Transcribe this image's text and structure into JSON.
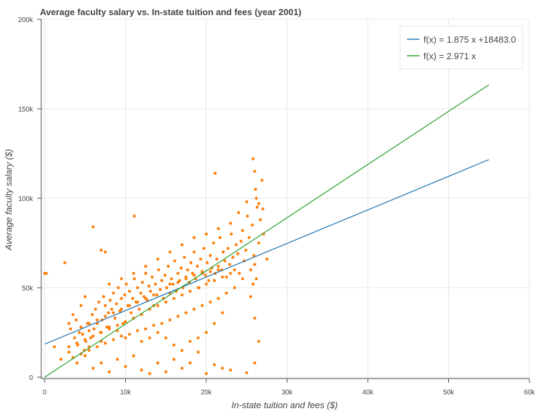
{
  "chart_data": {
    "type": "scatter",
    "title": "Average faculty salary vs. In-state tuition and fees (year 2001)",
    "xlabel": "In-state tuition and fees ($)",
    "ylabel": "Average faculty salary ($)",
    "xlim": [
      0,
      60000
    ],
    "ylim": [
      0,
      200000
    ],
    "x_ticks": [
      {
        "value": 0,
        "label": "0"
      },
      {
        "value": 10000,
        "label": "10k"
      },
      {
        "value": 20000,
        "label": "20k"
      },
      {
        "value": 30000,
        "label": "30k"
      },
      {
        "value": 40000,
        "label": "40k"
      },
      {
        "value": 50000,
        "label": "50k"
      },
      {
        "value": 60000,
        "label": "60k"
      }
    ],
    "y_ticks": [
      {
        "value": 0,
        "label": "0"
      },
      {
        "value": 50000,
        "label": "50k"
      },
      {
        "value": 100000,
        "label": "100k"
      },
      {
        "value": 150000,
        "label": "150k"
      },
      {
        "value": 200000,
        "label": "200k"
      }
    ],
    "grid": true,
    "legend_position": "top-right",
    "series": [
      {
        "kind": "scatter",
        "color": "#ff7f0e",
        "points": [
          [
            0,
            58000
          ],
          [
            200,
            58000
          ],
          [
            2500,
            64000
          ],
          [
            3000,
            30000
          ],
          [
            3200,
            27000
          ],
          [
            3500,
            35000
          ],
          [
            3700,
            22000
          ],
          [
            3900,
            32000
          ],
          [
            4100,
            18000
          ],
          [
            4300,
            25000
          ],
          [
            4500,
            28000
          ],
          [
            4700,
            24000
          ],
          [
            4900,
            15000
          ],
          [
            5100,
            20000
          ],
          [
            5300,
            30000
          ],
          [
            5500,
            26000
          ],
          [
            5700,
            22000
          ],
          [
            5900,
            35000
          ],
          [
            6100,
            27000
          ],
          [
            6300,
            38000
          ],
          [
            6500,
            30000
          ],
          [
            6700,
            42000
          ],
          [
            6900,
            25000
          ],
          [
            7100,
            32000
          ],
          [
            7300,
            45000
          ],
          [
            7500,
            40000
          ],
          [
            7700,
            28000
          ],
          [
            7900,
            36000
          ],
          [
            8100,
            43000
          ],
          [
            8300,
            38000
          ],
          [
            8500,
            47000
          ],
          [
            8700,
            33000
          ],
          [
            8900,
            41000
          ],
          [
            9100,
            50000
          ],
          [
            9300,
            37000
          ],
          [
            9500,
            44000
          ],
          [
            9700,
            30000
          ],
          [
            9900,
            46000
          ],
          [
            10100,
            52000
          ],
          [
            10300,
            40000
          ],
          [
            10500,
            48000
          ],
          [
            10700,
            36000
          ],
          [
            10900,
            44000
          ],
          [
            11100,
            55000
          ],
          [
            11300,
            42000
          ],
          [
            11500,
            50000
          ],
          [
            11700,
            38000
          ],
          [
            11900,
            47000
          ],
          [
            12100,
            53000
          ],
          [
            12300,
            45000
          ],
          [
            12500,
            58000
          ],
          [
            12700,
            43000
          ],
          [
            12900,
            51000
          ],
          [
            13100,
            48000
          ],
          [
            13300,
            56000
          ],
          [
            13500,
            40000
          ],
          [
            13700,
            52000
          ],
          [
            13900,
            46000
          ],
          [
            14100,
            60000
          ],
          [
            14300,
            49000
          ],
          [
            14500,
            54000
          ],
          [
            14700,
            44000
          ],
          [
            14900,
            57000
          ],
          [
            15100,
            50000
          ],
          [
            15300,
            62000
          ],
          [
            15500,
            47000
          ],
          [
            15700,
            55000
          ],
          [
            15900,
            52000
          ],
          [
            16100,
            65000
          ],
          [
            16300,
            48000
          ],
          [
            16500,
            58000
          ],
          [
            16700,
            54000
          ],
          [
            16900,
            61000
          ],
          [
            17100,
            50000
          ],
          [
            17300,
            67000
          ],
          [
            17500,
            56000
          ],
          [
            17700,
            60000
          ],
          [
            17900,
            53000
          ],
          [
            18100,
            64000
          ],
          [
            18300,
            58000
          ],
          [
            18500,
            70000
          ],
          [
            18700,
            55000
          ],
          [
            18900,
            62000
          ],
          [
            19100,
            50000
          ],
          [
            19300,
            66000
          ],
          [
            19500,
            59000
          ],
          [
            19700,
            72000
          ],
          [
            19900,
            57000
          ],
          [
            20100,
            64000
          ],
          [
            20300,
            54000
          ],
          [
            20500,
            68000
          ],
          [
            20700,
            61000
          ],
          [
            20900,
            75000
          ],
          [
            21100,
            58000
          ],
          [
            21300,
            66000
          ],
          [
            21500,
            62000
          ],
          [
            21700,
            78000
          ],
          [
            21900,
            60000
          ],
          [
            22100,
            70000
          ],
          [
            22300,
            65000
          ],
          [
            22500,
            56000
          ],
          [
            22700,
            72000
          ],
          [
            22900,
            63000
          ],
          [
            23100,
            80000
          ],
          [
            23300,
            67000
          ],
          [
            23500,
            60000
          ],
          [
            23700,
            74000
          ],
          [
            23900,
            69000
          ],
          [
            24100,
            58000
          ],
          [
            24300,
            76000
          ],
          [
            24500,
            82000
          ],
          [
            24700,
            65000
          ],
          [
            24900,
            71000
          ],
          [
            25100,
            90000
          ],
          [
            25300,
            78000
          ],
          [
            25500,
            60000
          ],
          [
            25700,
            85000
          ],
          [
            25900,
            68000
          ],
          [
            26100,
            105000
          ],
          [
            26300,
            95000
          ],
          [
            26500,
            75000
          ],
          [
            26700,
            88000
          ],
          [
            26900,
            110000
          ],
          [
            27100,
            80000
          ],
          [
            25800,
            122000
          ],
          [
            26000,
            115000
          ],
          [
            26200,
            100000
          ],
          [
            21100,
            114000
          ],
          [
            11100,
            90000
          ],
          [
            6000,
            84000
          ],
          [
            7000,
            71000
          ],
          [
            7500,
            70000
          ],
          [
            1200,
            17000
          ],
          [
            2000,
            10000
          ],
          [
            3000,
            14000
          ],
          [
            4000,
            8000
          ],
          [
            5000,
            12000
          ],
          [
            6000,
            5000
          ],
          [
            7000,
            8000
          ],
          [
            8000,
            3000
          ],
          [
            9000,
            10000
          ],
          [
            10000,
            6000
          ],
          [
            11000,
            12000
          ],
          [
            12000,
            4000
          ],
          [
            13000,
            2000
          ],
          [
            14000,
            8000
          ],
          [
            15000,
            3000
          ],
          [
            16000,
            10000
          ],
          [
            17000,
            5000
          ],
          [
            18000,
            8000
          ],
          [
            19000,
            14000
          ],
          [
            20000,
            2000
          ],
          [
            21000,
            7000
          ],
          [
            22000,
            5000
          ],
          [
            23000,
            4000
          ],
          [
            25000,
            2500
          ],
          [
            26000,
            8000
          ],
          [
            26500,
            20000
          ],
          [
            26000,
            33000
          ],
          [
            25500,
            45000
          ],
          [
            25800,
            52000
          ],
          [
            26200,
            55000
          ],
          [
            12000,
            20000
          ],
          [
            13000,
            22000
          ],
          [
            14000,
            25000
          ],
          [
            15000,
            22000
          ],
          [
            16000,
            18000
          ],
          [
            17000,
            15000
          ],
          [
            18000,
            20000
          ],
          [
            19000,
            22000
          ],
          [
            20000,
            25000
          ],
          [
            21000,
            30000
          ],
          [
            22000,
            36000
          ],
          [
            10000,
            22000
          ],
          [
            9000,
            26000
          ],
          [
            8000,
            28000
          ],
          [
            7000,
            20000
          ],
          [
            5500,
            17000
          ],
          [
            4500,
            40000
          ],
          [
            5000,
            45000
          ],
          [
            8000,
            52000
          ],
          [
            9500,
            55000
          ],
          [
            11000,
            58000
          ],
          [
            12500,
            62000
          ],
          [
            14000,
            66000
          ],
          [
            15500,
            70000
          ],
          [
            17000,
            74000
          ],
          [
            18500,
            78000
          ],
          [
            20000,
            80000
          ],
          [
            21500,
            83000
          ],
          [
            23000,
            86000
          ],
          [
            24000,
            92000
          ],
          [
            25000,
            98000
          ],
          [
            26500,
            97000
          ],
          [
            27000,
            94000
          ],
          [
            27500,
            66000
          ],
          [
            26000,
            63000
          ],
          [
            24500,
            55000
          ],
          [
            23500,
            50000
          ],
          [
            22500,
            47000
          ],
          [
            21500,
            44000
          ],
          [
            20500,
            42000
          ],
          [
            19500,
            40000
          ],
          [
            18500,
            38000
          ],
          [
            17500,
            36000
          ],
          [
            16500,
            34000
          ],
          [
            15500,
            32000
          ],
          [
            14500,
            30000
          ],
          [
            13500,
            29000
          ],
          [
            12500,
            27000
          ],
          [
            11500,
            26000
          ],
          [
            10500,
            24000
          ],
          [
            9500,
            23000
          ],
          [
            8500,
            21000
          ],
          [
            7500,
            19000
          ],
          [
            6500,
            17000
          ],
          [
            5500,
            15000
          ],
          [
            4500,
            13000
          ],
          [
            3500,
            11000
          ],
          [
            13000,
            38000
          ],
          [
            14000,
            40000
          ],
          [
            15000,
            42000
          ],
          [
            16000,
            44000
          ],
          [
            17000,
            46000
          ],
          [
            18000,
            48000
          ],
          [
            19000,
            50000
          ],
          [
            20000,
            52000
          ],
          [
            21000,
            54000
          ],
          [
            22000,
            56000
          ],
          [
            23000,
            58000
          ],
          [
            12000,
            35000
          ],
          [
            11000,
            33000
          ],
          [
            10000,
            31000
          ],
          [
            9000,
            29000
          ],
          [
            8000,
            27000
          ],
          [
            7000,
            25000
          ],
          [
            6000,
            23000
          ],
          [
            5000,
            21000
          ],
          [
            4000,
            19000
          ],
          [
            3000,
            17000
          ],
          [
            15500,
            52000
          ],
          [
            16500,
            53000
          ],
          [
            17500,
            55000
          ],
          [
            18500,
            57000
          ],
          [
            19500,
            58000
          ],
          [
            20500,
            59000
          ],
          [
            21500,
            60000
          ],
          [
            13500,
            46000
          ],
          [
            12500,
            44000
          ],
          [
            11500,
            42000
          ],
          [
            10500,
            40000
          ],
          [
            9500,
            38000
          ],
          [
            8500,
            36000
          ],
          [
            7500,
            34000
          ],
          [
            6500,
            32000
          ],
          [
            5500,
            30000
          ],
          [
            4500,
            28000
          ]
        ]
      },
      {
        "kind": "line",
        "name": "f(x) = 1.875 x +18483.0",
        "color": "#1f77b4",
        "slope": 1.875,
        "intercept": 18483.0,
        "x_range": [
          0,
          55000
        ]
      },
      {
        "kind": "line",
        "name": "f(x) = 2.971 x",
        "color": "#2ca02c",
        "slope": 2.971,
        "intercept": 0,
        "x_range": [
          0,
          55000
        ]
      }
    ]
  }
}
